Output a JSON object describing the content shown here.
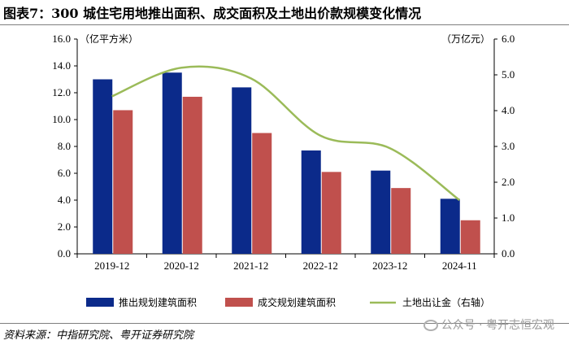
{
  "title": "图表7：300 城住宅用地推出面积、成交面积及土地出价款规模变化情况",
  "source": "资料来源：中指研究院、粤开证券研究院",
  "watermark": "公众号 · 粤开志恒宏观",
  "chart_data": {
    "type": "bar",
    "categories": [
      "2019-12",
      "2020-12",
      "2021-12",
      "2022-12",
      "2023-12",
      "2024-11"
    ],
    "series": [
      {
        "name": "推出规划建筑面积",
        "axis": "left",
        "kind": "bar",
        "color": "#0b2a8a",
        "values": [
          13.0,
          13.5,
          12.4,
          7.7,
          6.2,
          4.1
        ]
      },
      {
        "name": "成交规划建筑面积",
        "axis": "left",
        "kind": "bar",
        "color": "#c0504d",
        "values": [
          10.7,
          11.7,
          9.0,
          6.1,
          4.9,
          2.5
        ]
      },
      {
        "name": "土地出让金（右轴）",
        "axis": "right",
        "kind": "line",
        "color": "#9bbb59",
        "values": [
          4.4,
          5.2,
          4.9,
          3.3,
          2.95,
          1.5
        ]
      }
    ],
    "left_axis": {
      "label": "（亿平方米）",
      "min": 0,
      "max": 16,
      "step": 2,
      "ticks": [
        "0.0",
        "2.0",
        "4.0",
        "6.0",
        "8.0",
        "10.0",
        "12.0",
        "14.0",
        "16.0"
      ]
    },
    "right_axis": {
      "label": "（万亿元）",
      "min": 0,
      "max": 6,
      "step": 1,
      "ticks": [
        "0.0",
        "1.0",
        "2.0",
        "3.0",
        "4.0",
        "5.0",
        "6.0"
      ]
    },
    "legend_position": "bottom",
    "grid": false
  }
}
